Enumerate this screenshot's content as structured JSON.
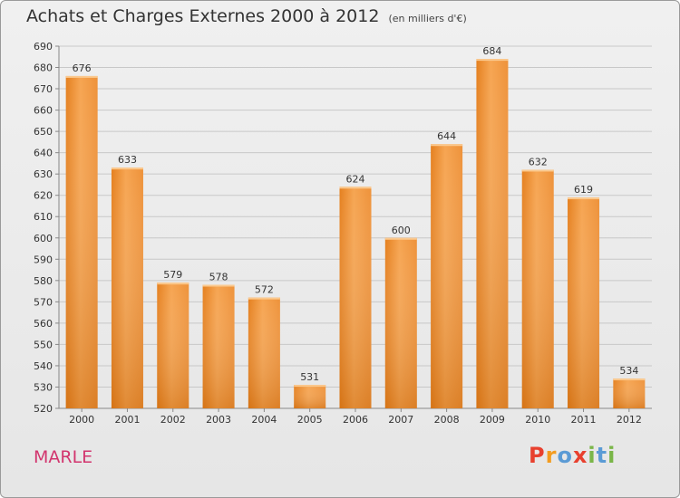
{
  "chart_data": {
    "type": "bar",
    "title": "Achats et Charges Externes 2000 à 2012",
    "subtitle": "(en milliers d'€)",
    "categories": [
      "2000",
      "2001",
      "2002",
      "2003",
      "2004",
      "2005",
      "2006",
      "2007",
      "2008",
      "2009",
      "2010",
      "2011",
      "2012"
    ],
    "values": [
      676,
      633,
      579,
      578,
      572,
      531,
      624,
      600,
      644,
      684,
      632,
      619,
      534
    ],
    "xlabel": "",
    "ylabel": "",
    "ylim": [
      520,
      690
    ],
    "ytick_step": 10,
    "grid": true,
    "legend": "none",
    "bar_color": "#f0963a",
    "bar_color_dark": "#d9761b"
  },
  "footer": {
    "commune": "MARLE",
    "logo_letters": [
      "P",
      "r",
      "o",
      "x",
      "i",
      "t",
      "i"
    ],
    "logo_colors": [
      "#e8402e",
      "#f39c1f",
      "#5b9bd5",
      "#e8402e",
      "#7ab648",
      "#5b9bd5",
      "#7ab648"
    ]
  }
}
